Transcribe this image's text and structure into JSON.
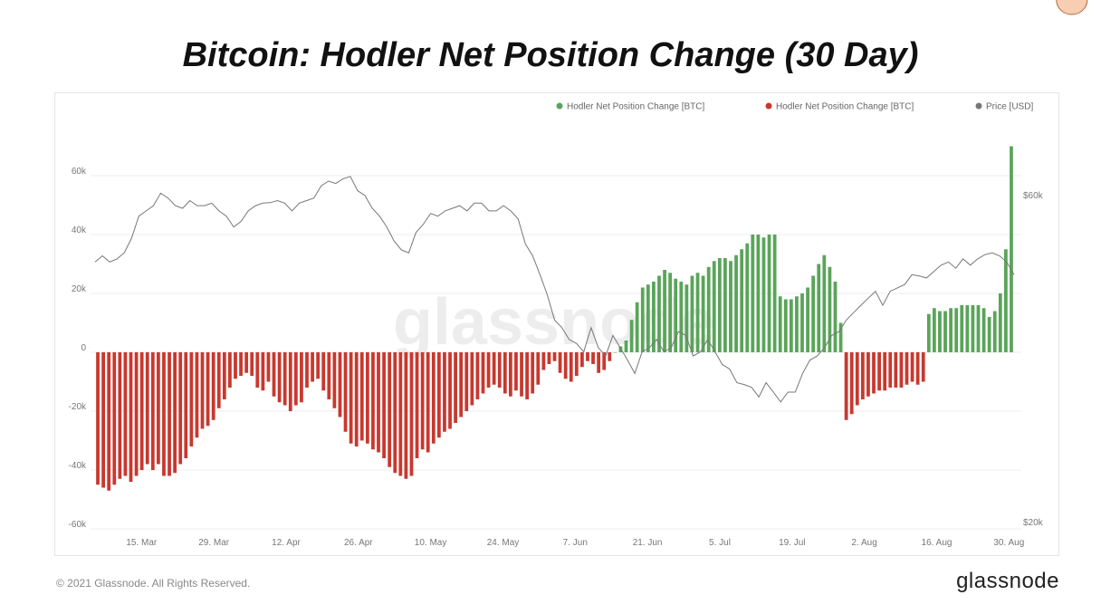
{
  "title": "Bitcoin: Hodler Net Position Change (30 Day)",
  "footer": {
    "copyright": "© 2021 Glassnode. All Rights Reserved.",
    "logo": "glassnode"
  },
  "watermark": "glassnode",
  "chart_data": {
    "type": "bar",
    "title": "Bitcoin: Hodler Net Position Change (30 Day)",
    "legend": {
      "placement": "top-right",
      "entries": [
        {
          "label": "Hodler Net Position Change [BTC]",
          "color": "#5aa45a"
        },
        {
          "label": "Hodler Net Position Change [BTC]",
          "color": "#c8382f"
        },
        {
          "label": "Price [USD]",
          "color": "#777777"
        }
      ]
    },
    "colors": {
      "positive": "#5aa45a",
      "negative": "#c8382f",
      "price": "#777777",
      "highlight_fill": "#f6c6a4",
      "highlight_stroke": "#b06a3c"
    },
    "x_start_date": "2021-03-06",
    "x_range": [
      "2021-03-06",
      "2021-08-31"
    ],
    "x_tick_labels": [
      "15. Mar",
      "29. Mar",
      "12. Apr",
      "26. Apr",
      "10. May",
      "24. May",
      "7. Jun",
      "21. Jun",
      "5. Jul",
      "19. Jul",
      "2. Aug",
      "16. Aug",
      "30. Aug"
    ],
    "x_tick_dates": [
      "2021-03-15",
      "2021-03-29",
      "2021-04-12",
      "2021-04-26",
      "2021-05-10",
      "2021-05-24",
      "2021-06-07",
      "2021-06-21",
      "2021-07-05",
      "2021-07-19",
      "2021-08-02",
      "2021-08-16",
      "2021-08-30"
    ],
    "y_left": {
      "ticks": [
        -60000,
        -40000,
        -20000,
        0,
        20000,
        40000,
        60000
      ],
      "tick_labels": [
        "-60k",
        "-40k",
        "-20k",
        "0",
        "20k",
        "40k",
        "60k"
      ],
      "range": [
        -60000,
        62000
      ]
    },
    "y_right": {
      "ticks": [
        20000,
        60000
      ],
      "tick_labels": [
        "$20k",
        "$60k"
      ],
      "range": [
        20000,
        60000
      ],
      "scale": "log"
    },
    "grid": true,
    "net_position_change_btc": [
      -45000,
      -46000,
      -47000,
      -45000,
      -43000,
      -42000,
      -44000,
      -42000,
      -40000,
      -38000,
      -40000,
      -38000,
      -42000,
      -42000,
      -41000,
      -38000,
      -36000,
      -32000,
      -29000,
      -26000,
      -25000,
      -23000,
      -19000,
      -16000,
      -12000,
      -9000,
      -8000,
      -7000,
      -8000,
      -12000,
      -13000,
      -10000,
      -15000,
      -17000,
      -18000,
      -20000,
      -18000,
      -17000,
      -12000,
      -10000,
      -9000,
      -13000,
      -16000,
      -19000,
      -22000,
      -27000,
      -31000,
      -32000,
      -30000,
      -31000,
      -33000,
      -34000,
      -36000,
      -39000,
      -41000,
      -42000,
      -43000,
      -42000,
      -36000,
      -33000,
      -34000,
      -31000,
      -29000,
      -27000,
      -26000,
      -24000,
      -22000,
      -20000,
      -18000,
      -16000,
      -14000,
      -12000,
      -11000,
      -12000,
      -14000,
      -15000,
      -13000,
      -15000,
      -16000,
      -14000,
      -11000,
      -6000,
      -4000,
      -3000,
      -7000,
      -9000,
      -10000,
      -8000,
      -5000,
      -3000,
      -4000,
      -7000,
      -6000,
      -3000,
      0,
      2000,
      4000,
      11000,
      17000,
      22000,
      23000,
      24000,
      26000,
      28000,
      27000,
      25000,
      24000,
      23000,
      26000,
      27000,
      26000,
      29000,
      31000,
      32000,
      32000,
      31000,
      33000,
      35000,
      37000,
      40000,
      40000,
      39000,
      40000,
      40000,
      19000,
      18000,
      18000,
      19000,
      20000,
      22000,
      26000,
      30000,
      33000,
      29000,
      24000,
      10000,
      -23000,
      -21000,
      -18000,
      -16000,
      -15000,
      -14000,
      -13000,
      -13000,
      -12000,
      -12000,
      -12000,
      -11000,
      -10000,
      -11000,
      -10000,
      13000,
      15000,
      14000,
      14000,
      15000,
      15000,
      16000,
      16000,
      16000,
      16000,
      15000,
      12000,
      14000,
      20000,
      35000,
      70000
    ],
    "price_usd": [
      48000,
      49000,
      48000,
      48500,
      49500,
      52000,
      56000,
      57000,
      58000,
      60500,
      59500,
      58000,
      57500,
      59000,
      58000,
      58000,
      58500,
      57000,
      56000,
      54000,
      55000,
      57000,
      58000,
      58500,
      58600,
      59000,
      58500,
      57000,
      58500,
      59000,
      59500,
      62000,
      63000,
      62500,
      63500,
      64000,
      61000,
      60000,
      57500,
      56000,
      54000,
      51500,
      50000,
      49500,
      53000,
      54500,
      56500,
      56000,
      57000,
      57500,
      58000,
      57000,
      58500,
      58500,
      57000,
      57000,
      58000,
      57000,
      55500,
      51000,
      49000,
      46000,
      43000,
      39500,
      38500,
      37000,
      36500,
      35500,
      38500,
      36000,
      35000,
      37500,
      36000,
      34500,
      33000,
      35500,
      36000,
      37000,
      35500,
      36000,
      38000,
      37500,
      35000,
      35500,
      37000,
      35500,
      34000,
      33500,
      32000,
      31800,
      31500,
      30500,
      32000,
      31000,
      30000,
      31000,
      31000,
      33000,
      34500,
      35000,
      36000,
      37500,
      38000,
      39500,
      40500,
      41500,
      42500,
      43500,
      41500,
      43500,
      44000,
      44500,
      46000,
      45800,
      45500,
      46500,
      47500,
      48000,
      47000,
      48500,
      47500,
      48500,
      49200,
      49500,
      49000,
      48000,
      46000
    ],
    "price_x_start_index": 0,
    "highlight_index": 177
  }
}
